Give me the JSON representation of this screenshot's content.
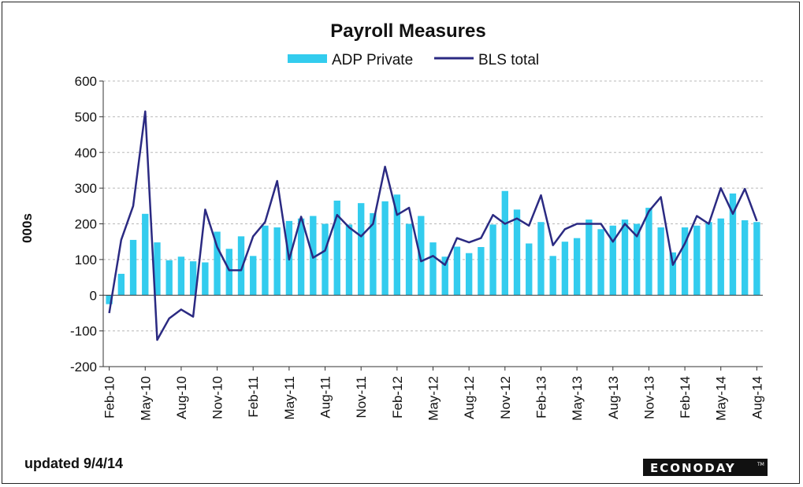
{
  "chart_data": {
    "type": "bar+line",
    "title": "Payroll Measures",
    "ylabel": "000s",
    "xlabel": "",
    "ylim": [
      -200,
      600
    ],
    "yticks": [
      -200,
      -100,
      0,
      100,
      200,
      300,
      400,
      500,
      600
    ],
    "grid": "horizontal dashed",
    "legend_position": "top-center",
    "categories": [
      "Feb-10",
      "Mar-10",
      "Apr-10",
      "May-10",
      "Jun-10",
      "Jul-10",
      "Aug-10",
      "Sep-10",
      "Oct-10",
      "Nov-10",
      "Dec-10",
      "Jan-11",
      "Feb-11",
      "Mar-11",
      "Apr-11",
      "May-11",
      "Jun-11",
      "Jul-11",
      "Aug-11",
      "Sep-11",
      "Oct-11",
      "Nov-11",
      "Dec-11",
      "Jan-12",
      "Feb-12",
      "Mar-12",
      "Apr-12",
      "May-12",
      "Jun-12",
      "Jul-12",
      "Aug-12",
      "Sep-12",
      "Oct-12",
      "Nov-12",
      "Dec-12",
      "Jan-13",
      "Feb-13",
      "Mar-13",
      "Apr-13",
      "May-13",
      "Jun-13",
      "Jul-13",
      "Aug-13",
      "Sep-13",
      "Oct-13",
      "Nov-13",
      "Dec-13",
      "Jan-14",
      "Feb-14",
      "Mar-14",
      "Apr-14",
      "May-14",
      "Jun-14",
      "Jul-14",
      "Aug-14"
    ],
    "tick_labels": [
      "Feb-10",
      "May-10",
      "Aug-10",
      "Nov-10",
      "Feb-11",
      "May-11",
      "Aug-11",
      "Nov-11",
      "Feb-12",
      "May-12",
      "Aug-12",
      "Nov-12",
      "Feb-13",
      "May-13",
      "Aug-13",
      "Nov-13",
      "Feb-14",
      "May-14",
      "Aug-14"
    ],
    "series": [
      {
        "name": "ADP Private",
        "kind": "bar",
        "color": "#33ccee",
        "values": [
          -25,
          60,
          155,
          228,
          148,
          98,
          108,
          95,
          92,
          178,
          130,
          165,
          110,
          195,
          190,
          208,
          215,
          222,
          200,
          265,
          198,
          258,
          230,
          263,
          282,
          200,
          222,
          148,
          108,
          136,
          118,
          135,
          198,
          292,
          240,
          145,
          205,
          110,
          150,
          160,
          212,
          185,
          195,
          212,
          200,
          245,
          190,
          120,
          190,
          195,
          205,
          215,
          285,
          210,
          205
        ]
      },
      {
        "name": "BLS total",
        "kind": "line",
        "color": "#2b2a82",
        "values": [
          -50,
          155,
          250,
          515,
          -125,
          -65,
          -40,
          -60,
          240,
          135,
          70,
          70,
          165,
          205,
          320,
          100,
          220,
          105,
          125,
          225,
          190,
          165,
          200,
          360,
          225,
          245,
          95,
          110,
          85,
          160,
          148,
          160,
          225,
          200,
          215,
          195,
          280,
          140,
          185,
          200,
          200,
          200,
          150,
          200,
          165,
          235,
          275,
          85,
          145,
          222,
          200,
          300,
          228,
          298,
          208
        ]
      }
    ],
    "footnote": "updated 9/4/14",
    "logo": "ECONODAY"
  }
}
